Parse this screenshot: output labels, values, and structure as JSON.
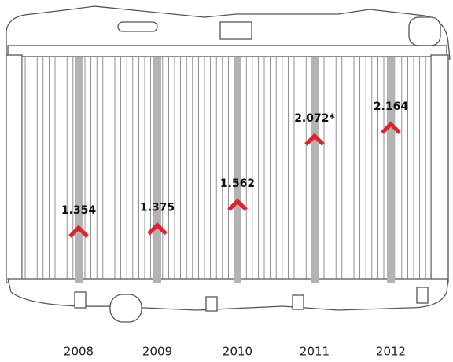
{
  "chart_data": {
    "type": "pictograph",
    "categories": [
      "2008",
      "2009",
      "2010",
      "2011",
      "2012"
    ],
    "values": [
      1.354,
      1.375,
      1.562,
      2.072,
      2.164
    ],
    "value_labels": [
      "1.354",
      "1.375",
      "1.562",
      "2.072*",
      "2.164"
    ],
    "color": "#e3202b"
  }
}
